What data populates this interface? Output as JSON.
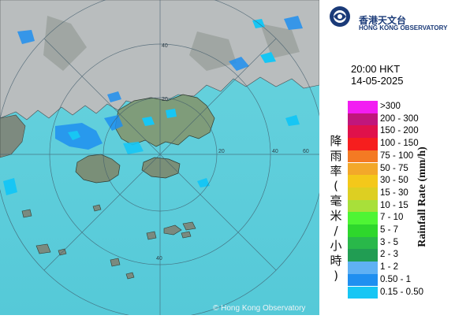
{
  "logo": {
    "name_cn": "香港天文台",
    "name_en": "HONG KONG OBSERVATORY"
  },
  "time": "20:00 HKT",
  "date": "14-05-2025",
  "map": {
    "range_rings_km": [
      "20",
      "40",
      "60"
    ],
    "sea_color": "#5fd0dc",
    "land_color": "#7f8c80",
    "copyright": "© Hong Kong Observatory"
  },
  "legend": {
    "title_cn": "降雨率(毫米/小時)",
    "title_en": "Rainfall Rate (mm/h)",
    "items": [
      {
        "label": ">300",
        "color": "#f21df2"
      },
      {
        "label": "200 - 300",
        "color": "#c0167c"
      },
      {
        "label": "150 - 200",
        "color": "#e0114b"
      },
      {
        "label": "100 - 150",
        "color": "#f61e1e"
      },
      {
        "label": "75 - 100",
        "color": "#f47a23"
      },
      {
        "label": "50 - 75",
        "color": "#f3a82a"
      },
      {
        "label": "30 - 50",
        "color": "#f4c81a"
      },
      {
        "label": "15 - 30",
        "color": "#ddcf22"
      },
      {
        "label": "10 - 15",
        "color": "#a8e03a"
      },
      {
        "label": "7 - 10",
        "color": "#4ef534"
      },
      {
        "label": "5 - 7",
        "color": "#2ed72c"
      },
      {
        "label": "3 - 5",
        "color": "#29b84a"
      },
      {
        "label": "2 - 3",
        "color": "#219d53"
      },
      {
        "label": "1 - 2",
        "color": "#5fb1f4"
      },
      {
        "label": "0.50 - 1",
        "color": "#1f8ff0"
      },
      {
        "label": "0.15 - 0.50",
        "color": "#17c6f4"
      }
    ]
  }
}
